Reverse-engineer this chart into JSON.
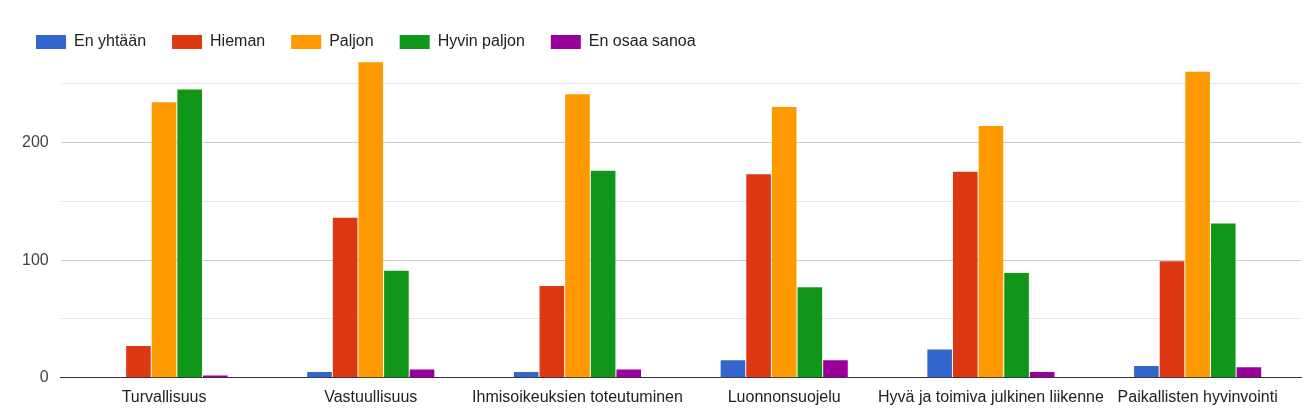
{
  "chart_data": {
    "type": "bar",
    "categories": [
      "Turvallisuus",
      "Vastuullisuus",
      "Ihmisoikeuksien toteutuminen",
      "Luonnonsuojelu",
      "Hyvä ja toimiva julkinen liikenne",
      "Paikallisten hyvinvointi"
    ],
    "series": [
      {
        "name": "En yhtään",
        "color": "#3366cc",
        "values": [
          0,
          5,
          5,
          15,
          24,
          10
        ]
      },
      {
        "name": "Hieman",
        "color": "#dc3912",
        "values": [
          27,
          136,
          78,
          173,
          175,
          99
        ]
      },
      {
        "name": "Paljon",
        "color": "#ff9900",
        "values": [
          234,
          268,
          241,
          230,
          214,
          260
        ]
      },
      {
        "name": "Hyvin paljon",
        "color": "#109618",
        "values": [
          245,
          91,
          176,
          77,
          89,
          131
        ]
      },
      {
        "name": "En osaa sanoa",
        "color": "#990099",
        "values": [
          2,
          7,
          7,
          15,
          5,
          9
        ]
      }
    ],
    "ylim": [
      0,
      270
    ],
    "yticks": [
      0,
      {
        "value": 50,
        "label": null
      },
      100,
      {
        "value": 150,
        "label": null
      },
      200,
      {
        "value": 250,
        "label": null
      }
    ],
    "grid": "y",
    "legend": "top left"
  }
}
